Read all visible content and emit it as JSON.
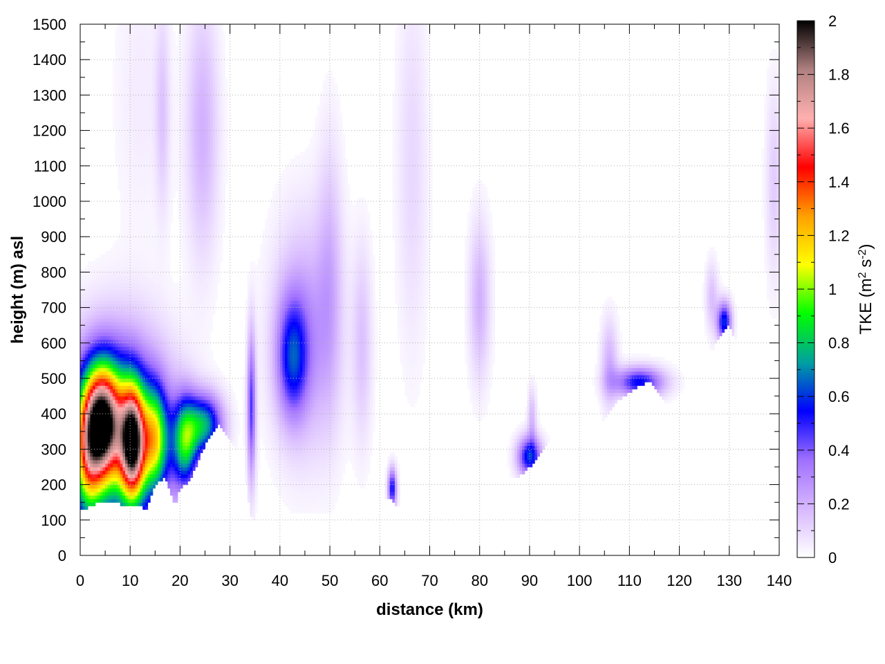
{
  "chart_data": {
    "type": "heatmap",
    "xlabel": "distance (km)",
    "ylabel": "height (m) asl",
    "xlim": [
      0,
      140
    ],
    "ylim": [
      0,
      1500
    ],
    "x_ticks": [
      0,
      10,
      20,
      30,
      40,
      50,
      60,
      70,
      80,
      90,
      100,
      110,
      120,
      130,
      140
    ],
    "y_ticks": [
      0,
      100,
      200,
      300,
      400,
      500,
      600,
      700,
      800,
      900,
      1000,
      1100,
      1200,
      1300,
      1400,
      1500
    ],
    "grid": true,
    "colorbar": {
      "label_main": "TKE (m",
      "label_sup1": "2",
      "label_mid": " s",
      "label_sup2": "-2",
      "label_end": ")",
      "range": [
        0,
        2
      ],
      "ticks": [
        0,
        0.2,
        0.4,
        0.6,
        0.8,
        1,
        1.2,
        1.4,
        1.6,
        1.8,
        2
      ],
      "placement": "right",
      "colors": [
        "#ffffff",
        "#d7b8ff",
        "#a070ff",
        "#0000ff",
        "#00a0a0",
        "#00ff00",
        "#ffff00",
        "#ffa000",
        "#ff0000",
        "#ffb0b0",
        "#b08080",
        "#000000"
      ]
    },
    "terrain": {
      "x": [
        0,
        1,
        2,
        4,
        6,
        8,
        10,
        12,
        13,
        15,
        17,
        19,
        20,
        22,
        24,
        26,
        28,
        30,
        32,
        33,
        34,
        35,
        36,
        37,
        38,
        40,
        45,
        50,
        55,
        58,
        60,
        62,
        63,
        64,
        66,
        70,
        74,
        78,
        82,
        86,
        88,
        90,
        92,
        94,
        96,
        98,
        100,
        102,
        104,
        106,
        108,
        110,
        112,
        114,
        116,
        118,
        120,
        122,
        124,
        126,
        128,
        130,
        132,
        134,
        136,
        138,
        140
      ],
      "y": [
        130,
        125,
        140,
        150,
        150,
        145,
        145,
        140,
        125,
        200,
        220,
        140,
        190,
        210,
        280,
        340,
        370,
        330,
        270,
        230,
        120,
        90,
        110,
        140,
        130,
        125,
        120,
        120,
        140,
        155,
        165,
        165,
        145,
        145,
        155,
        170,
        170,
        185,
        200,
        210,
        225,
        250,
        280,
        330,
        320,
        300,
        290,
        330,
        370,
        410,
        440,
        460,
        480,
        490,
        460,
        400,
        430,
        480,
        520,
        560,
        620,
        650,
        580,
        560,
        540,
        530,
        520
      ]
    },
    "tke_blobs": [
      {
        "x": 4.5,
        "y": 380,
        "sx": 2.6,
        "sy": 110,
        "v": 1.45
      },
      {
        "x": 10.5,
        "y": 320,
        "sx": 1.7,
        "sy": 110,
        "v": 1.45
      },
      {
        "x": 7.5,
        "y": 330,
        "sx": 7.0,
        "sy": 190,
        "v": 0.8
      },
      {
        "x": 1.5,
        "y": 280,
        "sx": 2.0,
        "sy": 130,
        "v": 0.7
      },
      {
        "x": 15.0,
        "y": 330,
        "sx": 1.8,
        "sy": 100,
        "v": 0.75
      },
      {
        "x": 21.0,
        "y": 320,
        "sx": 1.8,
        "sy": 90,
        "v": 0.75
      },
      {
        "x": 25.0,
        "y": 370,
        "sx": 2.5,
        "sy": 60,
        "v": 0.7
      },
      {
        "x": 34.3,
        "y": 420,
        "sx": 0.6,
        "sy": 150,
        "v": 0.45
      },
      {
        "x": 42.5,
        "y": 560,
        "sx": 2.2,
        "sy": 120,
        "v": 0.45
      },
      {
        "x": 45.0,
        "y": 620,
        "sx": 4.5,
        "sy": 230,
        "v": 0.25
      },
      {
        "x": 50.0,
        "y": 800,
        "sx": 1.8,
        "sy": 280,
        "v": 0.15
      },
      {
        "x": 56.5,
        "y": 600,
        "sx": 1.4,
        "sy": 200,
        "v": 0.15
      },
      {
        "x": 62.5,
        "y": 190,
        "sx": 0.6,
        "sy": 40,
        "v": 0.55
      },
      {
        "x": 24.5,
        "y": 1200,
        "sx": 2.3,
        "sy": 260,
        "v": 0.2
      },
      {
        "x": 16.5,
        "y": 1250,
        "sx": 1.0,
        "sy": 200,
        "v": 0.13
      },
      {
        "x": 12.0,
        "y": 1300,
        "sx": 4.0,
        "sy": 300,
        "v": 0.05
      },
      {
        "x": 66.5,
        "y": 1100,
        "sx": 2.2,
        "sy": 380,
        "v": 0.1
      },
      {
        "x": 80.0,
        "y": 720,
        "sx": 1.5,
        "sy": 160,
        "v": 0.2
      },
      {
        "x": 90.0,
        "y": 280,
        "sx": 1.7,
        "sy": 40,
        "v": 0.6
      },
      {
        "x": 90.5,
        "y": 390,
        "sx": 0.6,
        "sy": 60,
        "v": 0.18
      },
      {
        "x": 106.0,
        "y": 540,
        "sx": 1.2,
        "sy": 90,
        "v": 0.2
      },
      {
        "x": 112.0,
        "y": 490,
        "sx": 3.5,
        "sy": 30,
        "v": 0.55
      },
      {
        "x": 129.0,
        "y": 660,
        "sx": 1.0,
        "sy": 40,
        "v": 0.6
      },
      {
        "x": 126.5,
        "y": 730,
        "sx": 0.9,
        "sy": 70,
        "v": 0.16
      },
      {
        "x": 139.0,
        "y": 1050,
        "sx": 1.2,
        "sy": 200,
        "v": 0.13
      }
    ]
  }
}
